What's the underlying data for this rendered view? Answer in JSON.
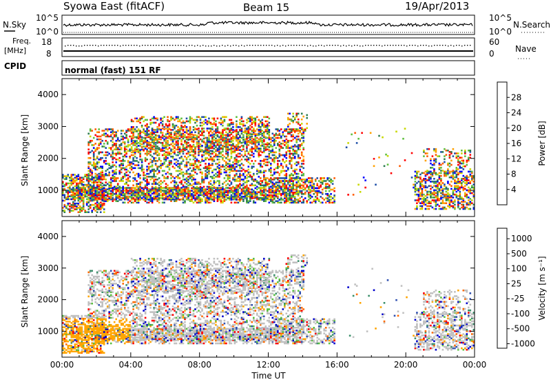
{
  "header": {
    "title": "Syowa East (fitACF)",
    "beam": "Beam 15",
    "date": "19/Apr/2013"
  },
  "strips": {
    "nsky_label": "N.Sky",
    "nsearch_label": "N.Search",
    "nsky_ticks": [
      "10^5",
      "10^0"
    ],
    "nsearch_ticks": [
      "10^5",
      "10^0"
    ],
    "freq_label_1": "Freq.",
    "freq_label_2": "[MHz]",
    "freq_ticks": [
      "18",
      "8"
    ],
    "nave_label": "Nave",
    "nave_ticks": [
      "60",
      "0"
    ],
    "cpid_label": "CPID",
    "cpid_text": "normal (fast) 151 RF"
  },
  "colors": {
    "power_scale": [
      "#0000ff",
      "#1f4fa8",
      "#2e7d4f",
      "#5fbf3f",
      "#c8d800",
      "#ffa000",
      "#ff5a00",
      "#ff0000"
    ],
    "velocity_scale": [
      "#0000cc",
      "#2f4fb0",
      "#3a8f6a",
      "#5ac040",
      "#c0c0c0",
      "#ffa500",
      "#ff6a00",
      "#ff0000"
    ]
  },
  "chart_data": [
    {
      "type": "heatmap",
      "panel": "power",
      "ylabel": "Slant Range [km]",
      "xlabel": "",
      "x_ticks": [
        "00:00",
        "04:00",
        "08:00",
        "12:00",
        "16:00",
        "20:00",
        "00:00"
      ],
      "y_ticks": [
        "1000",
        "2000",
        "3000",
        "4000"
      ],
      "ylim": [
        180,
        4500
      ],
      "xlim_hours": [
        0,
        24
      ],
      "colorbar_label": "Power [dB]",
      "colorbar_ticks": [
        "4",
        "8",
        "12",
        "16",
        "20",
        "24",
        "28"
      ],
      "colorbar_range": [
        0,
        32
      ]
    },
    {
      "type": "heatmap",
      "panel": "velocity",
      "ylabel": "Slant Range [km]",
      "xlabel": "Time UT",
      "x_ticks": [
        "00:00",
        "04:00",
        "08:00",
        "12:00",
        "16:00",
        "20:00",
        "00:00"
      ],
      "y_ticks": [
        "1000",
        "2000",
        "3000",
        "4000"
      ],
      "ylim": [
        180,
        4500
      ],
      "xlim_hours": [
        0,
        24
      ],
      "colorbar_label": "Velocity [m s⁻¹]",
      "colorbar_ticks": [
        "1000",
        "500",
        "100",
        "25",
        "-25",
        "-100",
        "-500",
        "-1000"
      ]
    }
  ]
}
